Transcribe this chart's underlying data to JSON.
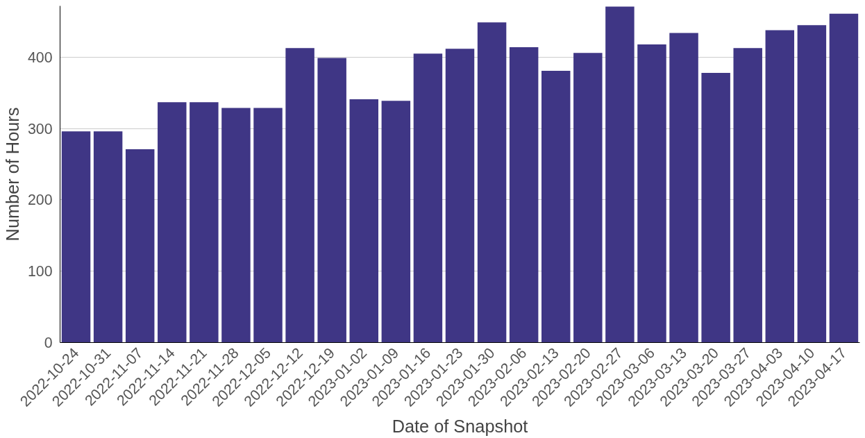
{
  "chart_data": {
    "type": "bar",
    "xlabel": "Date of Snapshot",
    "ylabel": "Number of Hours",
    "categories": [
      "2022-10-24",
      "2022-10-31",
      "2022-11-07",
      "2022-11-14",
      "2022-11-21",
      "2022-11-28",
      "2022-12-05",
      "2022-12-12",
      "2022-12-19",
      "2023-01-02",
      "2023-01-09",
      "2023-01-16",
      "2023-01-23",
      "2023-01-30",
      "2023-02-06",
      "2023-02-13",
      "2023-02-20",
      "2023-02-27",
      "2023-03-06",
      "2023-03-13",
      "2023-03-20",
      "2023-03-27",
      "2023-04-03",
      "2023-04-10",
      "2023-04-17"
    ],
    "values": [
      296,
      296,
      271,
      337,
      337,
      329,
      329,
      413,
      399,
      341,
      339,
      405,
      412,
      449,
      414,
      381,
      406,
      471,
      418,
      434,
      378,
      413,
      438,
      445,
      461
    ],
    "color": "#3f3685",
    "ylim": [
      0,
      472
    ],
    "yticks": [
      0,
      100,
      200,
      300,
      400
    ],
    "grid": "y"
  }
}
